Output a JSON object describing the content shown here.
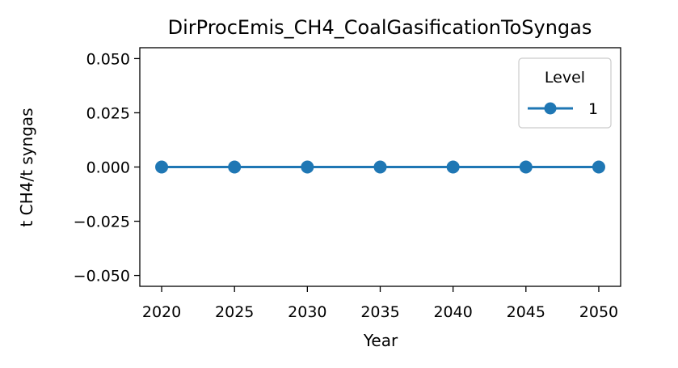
{
  "chart_data": {
    "type": "line",
    "title": "DirProcEmis_CH4_CoalGasificationToSyngas",
    "xlabel": "Year",
    "ylabel": "t CH4/t syngas",
    "x": [
      2020,
      2025,
      2030,
      2035,
      2040,
      2045,
      2050
    ],
    "xticks": [
      "2020",
      "2025",
      "2030",
      "2035",
      "2040",
      "2045",
      "2050"
    ],
    "yticks": [
      "0.050",
      "0.025",
      "0.000",
      "−0.025",
      "−0.050"
    ],
    "ytick_values": [
      0.05,
      0.025,
      0,
      -0.025,
      -0.05
    ],
    "ylim": [
      -0.055,
      0.055
    ],
    "xlim": [
      2018.5,
      2051.5
    ],
    "grid": false,
    "legend": {
      "title": "Level",
      "placement": "top-right",
      "entries": [
        "1"
      ]
    },
    "series": [
      {
        "name": "1",
        "color": "#1f77b4",
        "marker": "circle",
        "values": [
          0,
          0,
          0,
          0,
          0,
          0,
          0
        ]
      }
    ]
  }
}
